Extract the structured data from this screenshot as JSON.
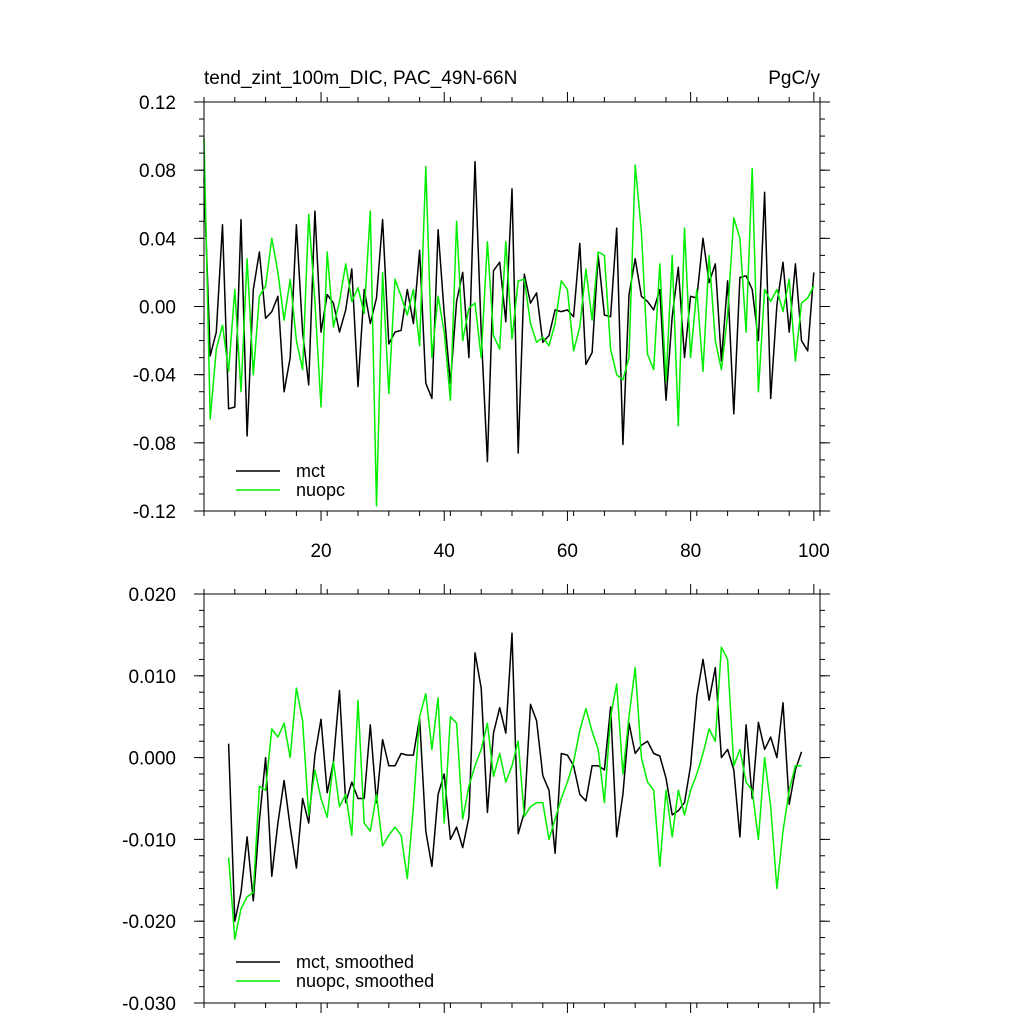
{
  "chart_data": [
    {
      "type": "line",
      "title": "tend_zint_100m_DIC, PAC_49N-66N",
      "units": "PgC/y",
      "xlim": [
        1,
        101
      ],
      "ylim": [
        -0.12,
        0.12
      ],
      "x_ticks": [
        20,
        40,
        60,
        80,
        100
      ],
      "x_tick_labels": [
        "20",
        "40",
        "60",
        "80",
        "100"
      ],
      "y_ticks": [
        0.12,
        0.08,
        0.04,
        0.0,
        -0.04,
        -0.08,
        -0.12
      ],
      "y_tick_labels": [
        "0.12",
        "0.08",
        "0.04",
        "0.00",
        "-0.04",
        "-0.08",
        "-0.12"
      ],
      "legend_position": "bottom-left",
      "grid": false,
      "x": [
        1,
        2,
        3,
        4,
        5,
        6,
        7,
        8,
        9,
        10,
        11,
        12,
        13,
        14,
        15,
        16,
        17,
        18,
        19,
        20,
        21,
        22,
        23,
        24,
        25,
        26,
        27,
        28,
        29,
        30,
        31,
        32,
        33,
        34,
        35,
        36,
        37,
        38,
        39,
        40,
        41,
        42,
        43,
        44,
        45,
        46,
        47,
        48,
        49,
        50,
        51,
        52,
        53,
        54,
        55,
        56,
        57,
        58,
        59,
        60,
        61,
        62,
        63,
        64,
        65,
        66,
        67,
        68,
        69,
        70,
        71,
        72,
        73,
        74,
        75,
        76,
        77,
        78,
        79,
        80,
        81,
        82,
        83,
        84,
        85,
        86,
        87,
        88,
        89,
        90,
        91,
        92,
        93,
        94,
        95,
        96,
        97,
        98,
        99,
        100
      ],
      "series": [
        {
          "name": "mct",
          "color": "#000000",
          "values": [
            0.075,
            -0.029,
            -0.015,
            0.048,
            -0.06,
            -0.059,
            0.051,
            -0.076,
            0.01,
            0.032,
            -0.007,
            -0.003,
            0.006,
            -0.05,
            -0.03,
            0.048,
            -0.015,
            -0.046,
            0.056,
            -0.015,
            0.007,
            0.002,
            -0.015,
            -0.002,
            0.022,
            -0.047,
            0.01,
            -0.01,
            0.005,
            0.051,
            -0.022,
            -0.015,
            -0.014,
            0.01,
            -0.01,
            0.033,
            -0.045,
            -0.054,
            0.045,
            -0.004,
            -0.045,
            0.003,
            0.02,
            -0.03,
            0.085,
            -0.015,
            -0.091,
            0.021,
            0.026,
            -0.009,
            0.069,
            -0.086,
            0.019,
            0.002,
            0.008,
            -0.021,
            -0.017,
            -0.002,
            -0.003,
            -0.002,
            -0.006,
            0.037,
            -0.034,
            -0.027,
            0.03,
            -0.005,
            -0.006,
            0.046,
            -0.081,
            0.007,
            0.028,
            0.006,
            0.003,
            -0.002,
            0.01,
            -0.055,
            -0.006,
            0.023,
            -0.03,
            0.006,
            0.005,
            0.04,
            0.014,
            0.025,
            -0.032,
            0.015,
            -0.063,
            0.017,
            0.018,
            0.01,
            -0.02,
            0.067,
            -0.054,
            0.001,
            0.026,
            -0.015,
            0.025,
            -0.02,
            -0.026,
            0.02
          ]
        },
        {
          "name": "nuopc",
          "color": "#00ee00",
          "values": [
            0.099,
            -0.066,
            -0.025,
            -0.011,
            -0.038,
            0.01,
            -0.05,
            0.028,
            -0.04,
            0.006,
            0.012,
            0.04,
            0.02,
            -0.008,
            0.016,
            -0.02,
            -0.037,
            0.054,
            0.003,
            -0.059,
            0.032,
            -0.012,
            0.003,
            0.025,
            0.003,
            0.011,
            -0.004,
            0.056,
            -0.117,
            0.02,
            -0.051,
            0.016,
            0.006,
            -0.005,
            0.01,
            -0.023,
            0.082,
            -0.03,
            0.006,
            -0.015,
            -0.055,
            0.05,
            -0.02,
            -0.001,
            0.002,
            -0.03,
            0.038,
            -0.017,
            -0.025,
            0.038,
            -0.019,
            0.015,
            0.016,
            -0.01,
            -0.021,
            -0.018,
            -0.023,
            -0.01,
            0.015,
            0.01,
            -0.026,
            -0.012,
            0.022,
            -0.008,
            0.032,
            0.03,
            -0.025,
            -0.04,
            -0.043,
            -0.03,
            0.083,
            0.044,
            -0.028,
            -0.037,
            0.025,
            -0.044,
            0.03,
            -0.07,
            0.046,
            -0.03,
            0.01,
            -0.038,
            0.03,
            -0.02,
            -0.037,
            -0.005,
            0.052,
            0.04,
            -0.015,
            0.081,
            -0.05,
            0.01,
            0.003,
            0.01,
            -0.003,
            0.016,
            -0.032,
            0.002,
            0.005,
            0.012
          ]
        }
      ]
    },
    {
      "type": "line",
      "xlim": [
        1,
        101
      ],
      "ylim": [
        -0.03,
        0.02
      ],
      "x_ticks": [
        20,
        40,
        60,
        80,
        100
      ],
      "y_ticks": [
        0.02,
        0.01,
        0.0,
        -0.01,
        -0.02,
        -0.03
      ],
      "y_tick_labels": [
        "0.020",
        "0.010",
        "0.000",
        "-0.010",
        "-0.020",
        "-0.030"
      ],
      "legend_position": "bottom-left",
      "grid": false,
      "x": [
        5,
        6,
        7,
        8,
        9,
        10,
        11,
        12,
        13,
        14,
        15,
        16,
        17,
        18,
        19,
        20,
        21,
        22,
        23,
        24,
        25,
        26,
        27,
        28,
        29,
        30,
        31,
        32,
        33,
        34,
        35,
        36,
        37,
        38,
        39,
        40,
        41,
        42,
        43,
        44,
        45,
        46,
        47,
        48,
        49,
        50,
        51,
        52,
        53,
        54,
        55,
        56,
        57,
        58,
        59,
        60,
        61,
        62,
        63,
        64,
        65,
        66,
        67,
        68,
        69,
        70,
        71,
        72,
        73,
        74,
        75,
        76,
        77,
        78,
        79,
        80,
        81,
        82,
        83,
        84,
        85,
        86,
        87,
        88,
        89,
        90,
        91,
        92,
        93,
        94,
        95,
        96,
        97,
        98
      ],
      "series": [
        {
          "name": "mct, smoothed",
          "color": "#000000",
          "values": [
            0.0017,
            -0.02,
            -0.0165,
            -0.0097,
            -0.0175,
            -0.0077,
            0.0,
            -0.0145,
            -0.008,
            -0.0028,
            -0.0085,
            -0.0135,
            -0.005,
            -0.008,
            0.0003,
            0.0047,
            -0.0043,
            -0.0005,
            0.0082,
            -0.0055,
            -0.003,
            -0.005,
            -0.005,
            0.004,
            -0.0055,
            0.0022,
            -0.001,
            -0.001,
            0.0005,
            0.0003,
            0.0003,
            0.0048,
            -0.009,
            -0.0133,
            -0.0045,
            -0.002,
            -0.01,
            -0.0085,
            -0.011,
            -0.0073,
            0.0128,
            0.0085,
            -0.0067,
            0.003,
            0.0061,
            0.003,
            0.0152,
            -0.0093,
            -0.0067,
            0.0065,
            0.0045,
            -0.0022,
            -0.004,
            -0.0117,
            0.0005,
            0.0003,
            -0.001,
            -0.0045,
            -0.0053,
            -0.001,
            -0.001,
            -0.0015,
            0.0062,
            -0.0097,
            -0.0045,
            0.0042,
            0.0005,
            0.0015,
            0.002,
            0.0005,
            0.0002,
            -0.0025,
            -0.007,
            -0.0065,
            -0.0055,
            -0.001,
            0.0075,
            0.012,
            0.007,
            0.011,
            0.0,
            0.001,
            -0.0015,
            -0.0097,
            0.004,
            -0.005,
            0.0043,
            0.001,
            0.0025,
            0.0,
            0.0067,
            -0.0057,
            -0.0015,
            0.0007
          ]
        },
        {
          "name": "nuopc, smoothed",
          "color": "#00ee00",
          "values": [
            -0.0122,
            -0.0222,
            -0.0185,
            -0.017,
            -0.0165,
            -0.0035,
            -0.004,
            0.0035,
            0.0025,
            0.0042,
            0.0,
            0.0085,
            0.0045,
            -0.007,
            -0.0015,
            -0.005,
            -0.0073,
            -0.0005,
            -0.006,
            -0.0045,
            -0.0095,
            0.007,
            -0.008,
            -0.009,
            -0.0045,
            -0.0108,
            -0.0095,
            -0.0085,
            -0.0095,
            -0.0148,
            -0.006,
            0.005,
            0.0078,
            0.001,
            0.0073,
            -0.008,
            0.005,
            0.0042,
            -0.0075,
            -0.0035,
            -0.001,
            0.001,
            0.0042,
            -0.0023,
            0.0005,
            -0.003,
            -0.001,
            0.002,
            -0.0072,
            -0.006,
            -0.0055,
            -0.0055,
            -0.01,
            -0.0075,
            -0.005,
            -0.003,
            -0.0005,
            0.0033,
            0.006,
            0.0032,
            0.001,
            -0.0055,
            0.005,
            0.009,
            -0.002,
            0.005,
            0.011,
            0.0,
            -0.003,
            -0.004,
            -0.0133,
            -0.004,
            -0.0097,
            -0.004,
            -0.007,
            -0.004,
            -0.002,
            0.0005,
            0.0035,
            0.002,
            0.0135,
            0.012,
            -0.001,
            0.001,
            -0.003,
            -0.004,
            -0.01,
            0.0,
            -0.006,
            -0.016,
            -0.009,
            -0.004,
            -0.001,
            -0.001
          ]
        }
      ]
    }
  ]
}
